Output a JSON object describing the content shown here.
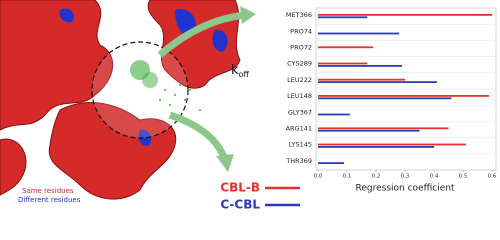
{
  "chart_data": {
    "type": "hbar",
    "categories": [
      "MET366",
      "PRO74",
      "PRO72",
      "CYS289",
      "LEU222",
      "LEU148",
      "GLY367",
      "ARG141",
      "LYS145",
      "THR369"
    ],
    "series": [
      {
        "name": "CBL-B",
        "color": "#e8312f",
        "values": [
          0.6,
          null,
          0.19,
          0.17,
          0.3,
          0.59,
          null,
          0.45,
          0.51,
          null
        ]
      },
      {
        "name": "C-CBL",
        "color": "#2b3bb8",
        "values": [
          0.17,
          0.28,
          null,
          0.29,
          0.41,
          0.46,
          0.11,
          0.35,
          0.4,
          0.09
        ]
      }
    ],
    "xlim": [
      0,
      0.6
    ],
    "xticks": [
      {
        "value": 0,
        "label": "0.0"
      },
      0.1,
      0.2,
      0.3,
      0.4,
      0.5,
      0.6
    ],
    "xlabel": "Regression coefficient",
    "grid": true,
    "legend": "bottom-left"
  },
  "image_labels": {
    "rate_symbol": "k",
    "rate_subscript": "off",
    "same": "Same residues",
    "different": "Different residues"
  }
}
